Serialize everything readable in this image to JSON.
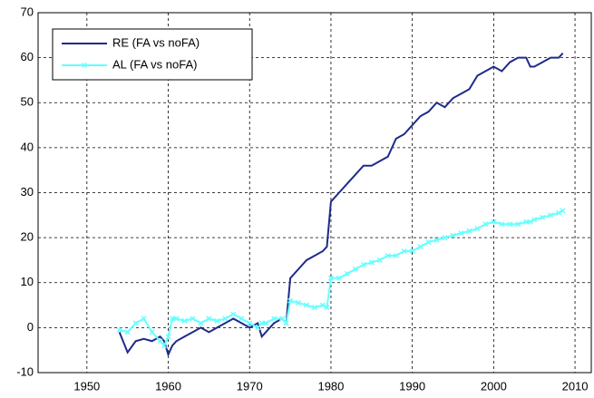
{
  "chart_data": {
    "type": "line",
    "x": [
      1954,
      1955,
      1956,
      1957,
      1958,
      1959,
      1959.5,
      1960,
      1960.5,
      1961,
      1962,
      1963,
      1964,
      1965,
      1966,
      1967,
      1968,
      1969,
      1970,
      1971,
      1971.5,
      1972,
      1973,
      1974,
      1974.5,
      1975,
      1976,
      1977,
      1978,
      1979,
      1979.5,
      1980,
      1981,
      1982,
      1983,
      1984,
      1985,
      1986,
      1987,
      1988,
      1989,
      1990,
      1991,
      1992,
      1993,
      1994,
      1995,
      1996,
      1997,
      1998,
      1999,
      2000,
      2001,
      2002,
      2003,
      2004,
      2004.5,
      2005,
      2006,
      2007,
      2008,
      2008.5
    ],
    "series": [
      {
        "name": "RE (FA vs noFA)",
        "color": "#1f2a8a",
        "values": [
          -1,
          -5.5,
          -3,
          -2.5,
          -3,
          -2,
          -3,
          -6,
          -4,
          -3,
          -2,
          -1,
          0,
          -1,
          0,
          1,
          2,
          1,
          0,
          1,
          -2,
          -1,
          1,
          2,
          1,
          11,
          13,
          15,
          16,
          17,
          18,
          28,
          30,
          32,
          34,
          36,
          36,
          37,
          38,
          42,
          43,
          45,
          47,
          48,
          50,
          49,
          51,
          52,
          53,
          56,
          57,
          58,
          57,
          59,
          60,
          60,
          58,
          58,
          59,
          60,
          60,
          61
        ]
      },
      {
        "name": "AL (FA vs noFA)",
        "color": "#66ffff",
        "values": [
          -0.5,
          -1,
          1,
          2,
          -1,
          -3,
          -4,
          -2,
          2,
          2,
          1.5,
          2,
          1,
          2,
          1.5,
          2,
          3,
          2,
          1,
          0,
          1,
          1,
          2,
          2,
          1,
          6,
          5.5,
          5,
          4.5,
          5,
          4.5,
          11,
          11,
          12,
          13,
          14,
          14.5,
          15,
          16,
          16,
          17,
          17,
          18,
          19,
          19.5,
          20,
          20.5,
          21,
          21.5,
          22,
          23,
          23.5,
          23,
          23,
          23,
          23.5,
          23.5,
          24,
          24.5,
          25,
          25.5,
          26
        ]
      }
    ],
    "xlim": [
      1944,
      2012
    ],
    "xticks": [
      1950,
      1960,
      1970,
      1980,
      1990,
      2000,
      2010
    ],
    "ylim": [
      -10,
      70
    ],
    "yticks": [
      -10,
      0,
      10,
      20,
      30,
      40,
      50,
      60,
      70
    ],
    "grid": true,
    "legend": "upper-left"
  }
}
